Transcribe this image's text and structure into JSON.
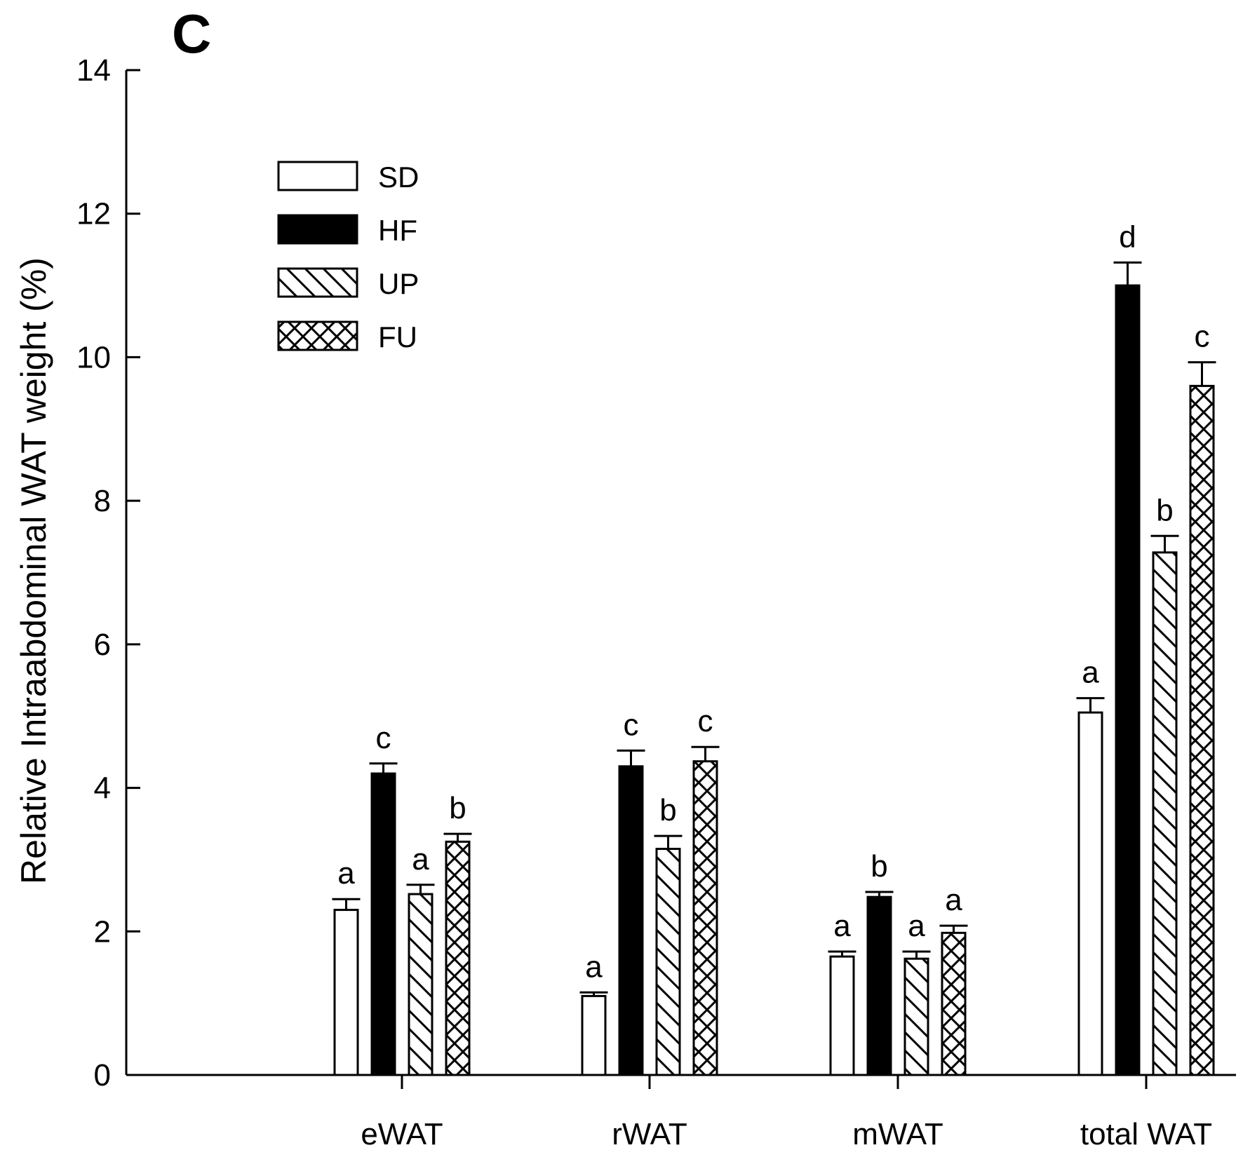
{
  "chart_data": {
    "type": "bar",
    "panel_label": "C",
    "title": "",
    "xlabel": "",
    "ylabel": "Relative Intraabdominal WAT weight (%)",
    "ylim": [
      0,
      14
    ],
    "yticks": [
      0,
      2,
      4,
      6,
      8,
      10,
      12,
      14
    ],
    "categories": [
      "eWAT",
      "rWAT",
      "mWAT",
      "total WAT"
    ],
    "legend_position": "top-left",
    "series": [
      {
        "name": "SD",
        "pattern": "open",
        "values": [
          2.3,
          1.1,
          1.65,
          5.05
        ],
        "errors": [
          0.15,
          0.05,
          0.07,
          0.2
        ],
        "labels": [
          "a",
          "a",
          "a",
          "a"
        ]
      },
      {
        "name": "HF",
        "pattern": "solid",
        "values": [
          4.2,
          4.3,
          2.48,
          11.0
        ],
        "errors": [
          0.14,
          0.22,
          0.07,
          0.32
        ],
        "labels": [
          "c",
          "c",
          "b",
          "d"
        ]
      },
      {
        "name": "UP",
        "pattern": "diagonal",
        "values": [
          2.52,
          3.15,
          1.62,
          7.28
        ],
        "errors": [
          0.13,
          0.18,
          0.1,
          0.23
        ],
        "labels": [
          "a",
          "b",
          "a",
          "b"
        ]
      },
      {
        "name": "FU",
        "pattern": "crosshatch",
        "values": [
          3.25,
          4.37,
          1.98,
          9.6
        ],
        "errors": [
          0.11,
          0.2,
          0.1,
          0.33
        ],
        "labels": [
          "b",
          "c",
          "a",
          "c"
        ]
      }
    ]
  }
}
